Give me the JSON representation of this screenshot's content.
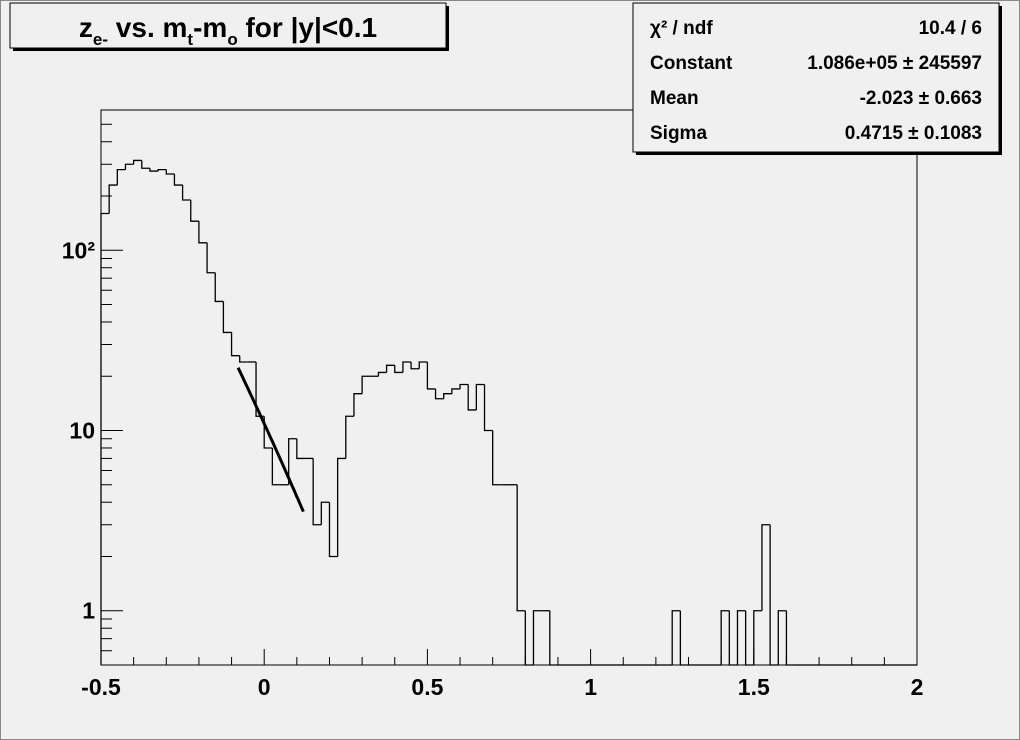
{
  "chart_data": {
    "type": "histogram",
    "title_parts": [
      {
        "text": "z"
      },
      {
        "text": "e-",
        "subscript": true
      },
      {
        "text": " vs. m"
      },
      {
        "text": "t",
        "subscript": true
      },
      {
        "text": "-m"
      },
      {
        "text": "o",
        "subscript": true
      },
      {
        "text": " for |y|<0.1"
      }
    ],
    "bins": [
      -0.5,
      -0.475,
      -0.45,
      -0.425,
      -0.4,
      -0.375,
      -0.35,
      -0.325,
      -0.3,
      -0.275,
      -0.25,
      -0.225,
      -0.2,
      -0.175,
      -0.15,
      -0.125,
      -0.1,
      -0.075,
      -0.05,
      -0.025,
      0,
      0.025,
      0.05,
      0.075,
      0.1,
      0.125,
      0.15,
      0.175,
      0.2,
      0.225,
      0.25,
      0.275,
      0.3,
      0.325,
      0.35,
      0.375,
      0.4,
      0.425,
      0.45,
      0.475,
      0.5,
      0.525,
      0.55,
      0.575,
      0.6,
      0.625,
      0.65,
      0.675,
      0.7,
      0.725,
      0.75,
      0.775,
      0.8,
      0.825,
      0.85,
      0.875,
      0.9,
      0.925,
      0.95,
      0.975,
      1,
      1.025,
      1.05,
      1.075,
      1.1,
      1.125,
      1.15,
      1.175,
      1.2,
      1.225,
      1.25,
      1.275,
      1.3,
      1.325,
      1.35,
      1.375,
      1.4,
      1.425,
      1.45,
      1.475,
      1.5,
      1.525,
      1.55,
      1.575,
      1.6,
      1.625,
      1.65,
      1.675,
      1.7,
      1.725,
      1.75,
      1.775,
      1.8,
      1.825,
      1.85,
      1.875,
      1.9,
      1.925,
      1.95,
      1.975,
      2
    ],
    "values": [
      160,
      230,
      280,
      300,
      315,
      285,
      275,
      280,
      265,
      230,
      190,
      145,
      110,
      75,
      52,
      35,
      26,
      24,
      24,
      12,
      8,
      5,
      5,
      9,
      7,
      7,
      3,
      4,
      2,
      7,
      12,
      16,
      20,
      20,
      21,
      23,
      21,
      24,
      22,
      24,
      17,
      15,
      16,
      17,
      18,
      13,
      18,
      10,
      5,
      5,
      5,
      1,
      0,
      1,
      1,
      0,
      0,
      0,
      0,
      0,
      0,
      0,
      0,
      0,
      0,
      0,
      0,
      0,
      0,
      0,
      1,
      0,
      0,
      0,
      0,
      0,
      1,
      0,
      1,
      0,
      1,
      3,
      0,
      1,
      0,
      0,
      0,
      0,
      0,
      0,
      0,
      0,
      0,
      0,
      0,
      0,
      0,
      0,
      0,
      0
    ],
    "color": "#000000",
    "xlim": [
      -0.5,
      2
    ],
    "xticks": [
      -0.5,
      0,
      0.5,
      1,
      1.5,
      2
    ],
    "xminor_ticks": [
      -0.4,
      -0.3,
      -0.2,
      -0.1,
      0.1,
      0.2,
      0.3,
      0.4,
      0.6,
      0.7,
      0.8,
      0.9,
      1.1,
      1.2,
      1.3,
      1.4,
      1.6,
      1.7,
      1.8,
      1.9
    ],
    "ylim": [
      0.5,
      600
    ],
    "log_y": true,
    "yticks": [
      1,
      10,
      {
        "value": 100,
        "label": "10²"
      }
    ],
    "yminor_ticks": [
      0.6,
      0.7,
      0.8,
      0.9,
      2,
      3,
      4,
      5,
      6,
      7,
      8,
      9,
      20,
      30,
      40,
      50,
      60,
      70,
      80,
      90,
      200,
      300,
      400,
      500
    ],
    "fit": {
      "constant": 108600,
      "mean": -2.023,
      "sigma": 0.4715,
      "xmin": -0.08,
      "xmax": 0.12
    },
    "stats": [
      [
        "χ² / ndf",
        "10.4 / 6"
      ],
      [
        "Constant",
        "1.086e+05 ± 245597"
      ],
      [
        "Mean",
        "-2.023 ± 0.663"
      ],
      [
        "Sigma",
        "0.4715 ± 0.1083"
      ]
    ]
  }
}
